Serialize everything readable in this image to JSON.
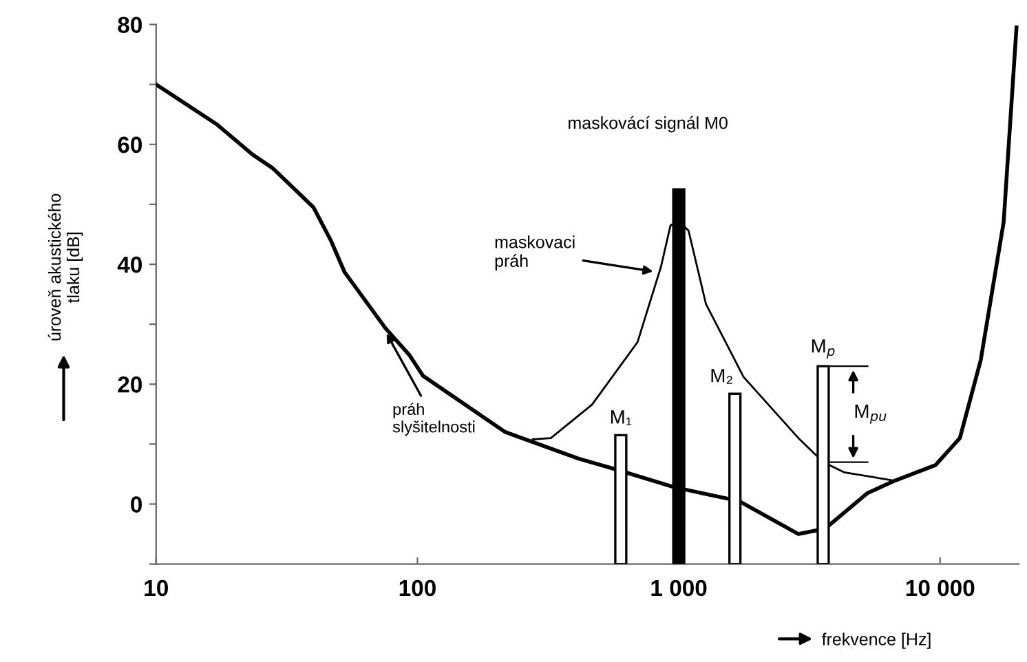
{
  "chart_data": {
    "type": "line",
    "xlabel": "frekvence [Hz]",
    "ylabel": "úroveň akustického\ntlaku [dB]",
    "log": "x",
    "xlim": [
      10,
      20000
    ],
    "xticks": [
      {
        "value": 10,
        "label": "10"
      },
      {
        "value": 100,
        "label": "100"
      },
      {
        "value": 1000,
        "label": "1 000"
      },
      {
        "value": 10000,
        "label": "10 000"
      }
    ],
    "ylim": [
      -10,
      80
    ],
    "yticks": [
      {
        "value": -10,
        "label": null
      },
      0,
      {
        "value": 10,
        "label": null
      },
      20,
      {
        "value": 30,
        "label": null
      },
      40,
      {
        "value": 50,
        "label": null
      },
      60,
      {
        "value": 70,
        "label": null
      },
      80
    ],
    "grid": false,
    "legend": false,
    "series": [
      {
        "color": "#000000",
        "x": [
          10,
          17,
          23.4,
          28,
          40,
          46.6,
          52.6,
          75.6,
          93,
          105,
          217,
          413,
          573,
          964,
          1700,
          2870,
          3630,
          5260,
          6700,
          9600,
          11900,
          14300,
          17500,
          19600
        ],
        "values": [
          70,
          63.4,
          58.3,
          56,
          49.5,
          44,
          38.7,
          29.3,
          24.9,
          21.4,
          12,
          7.6,
          5.8,
          2.8,
          0.5,
          -5,
          -4.1,
          1.8,
          3.9,
          6.5,
          11,
          24,
          47,
          79.5
        ]
      },
      {
        "color": "#000000",
        "x": [
          276,
          324,
          466,
          695,
          855,
          930,
          1000,
          1090,
          1270,
          1770,
          2870,
          3570,
          4290,
          6700
        ],
        "values": [
          10.8,
          11,
          16.6,
          27,
          39.6,
          46.5,
          47.2,
          45.6,
          33.4,
          21.2,
          11,
          7,
          5.3,
          3.9
        ]
      },
      {
        "type": "bar",
        "x": [
          600,
          1000,
          1640,
          3570
        ],
        "base": [
          -10,
          -10,
          -10,
          -10
        ],
        "values": [
          21.5,
          62.5,
          28.4,
          33
        ],
        "colors": [
          "#ffffff",
          "#000000",
          "#ffffff",
          "#ffffff"
        ]
      }
    ],
    "annotations": [
      "maskovácí signál M0",
      {
        "text": "maskovaci\npráh",
        "x": 824,
        "y": 38.7
      },
      {
        "text": "práh\nslyšitelnosti",
        "x": 75,
        "y": 29
      },
      {
        "text": "M₁",
        "x": 600,
        "y": 11.5
      },
      {
        "text": "M₂",
        "x": 1640,
        "y": 18.4
      },
      {
        "text": "M$_{p}$",
        "x": 3570,
        "y": 23
      },
      {
        "text": "M$_{pu}$",
        "x": 3570,
        "y": 15
      }
    ]
  }
}
